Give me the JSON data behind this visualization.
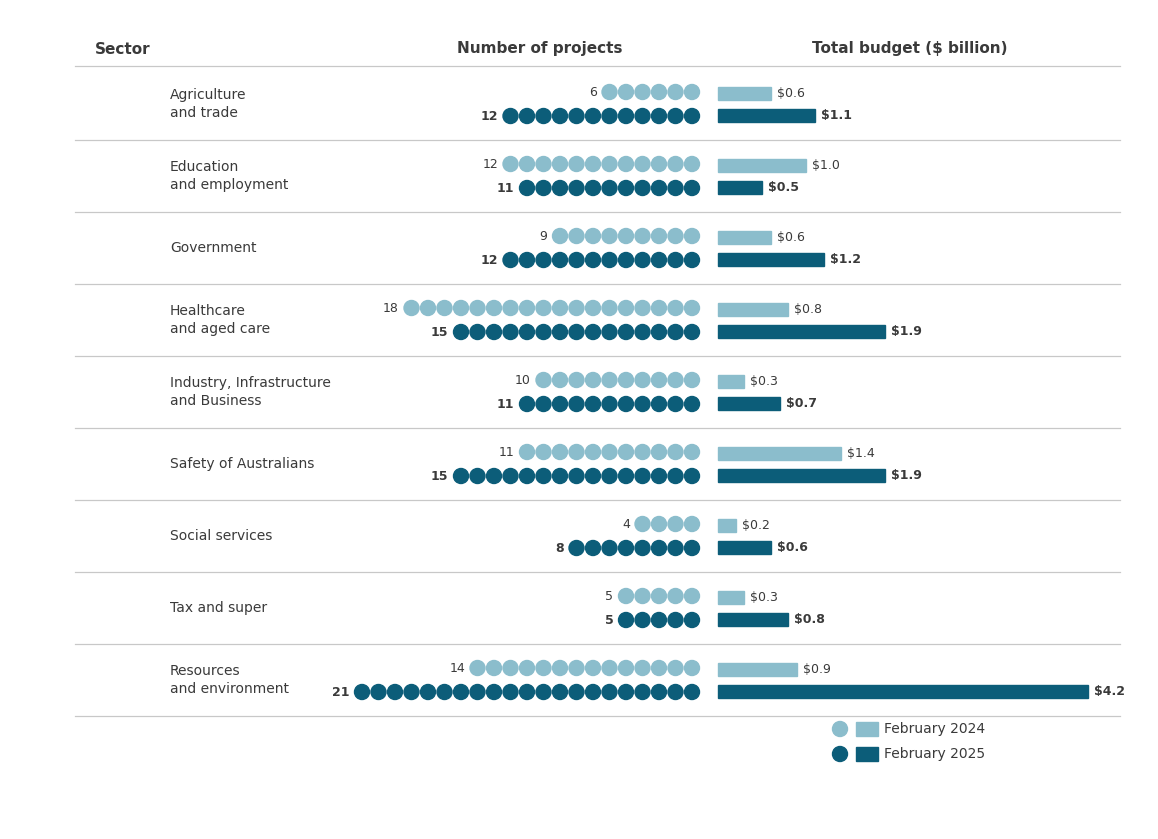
{
  "sectors": [
    {
      "name": "Agriculture\nand trade",
      "projects_2024": 6,
      "projects_2025": 12,
      "budget_2024": 0.6,
      "budget_2025": 1.1
    },
    {
      "name": "Education\nand employment",
      "projects_2024": 12,
      "projects_2025": 11,
      "budget_2024": 1.0,
      "budget_2025": 0.5
    },
    {
      "name": "Government",
      "projects_2024": 9,
      "projects_2025": 12,
      "budget_2024": 0.6,
      "budget_2025": 1.2
    },
    {
      "name": "Healthcare\nand aged care",
      "projects_2024": 18,
      "projects_2025": 15,
      "budget_2024": 0.8,
      "budget_2025": 1.9
    },
    {
      "name": "Industry, Infrastructure\nand Business",
      "projects_2024": 10,
      "projects_2025": 11,
      "budget_2024": 0.3,
      "budget_2025": 0.7
    },
    {
      "name": "Safety of Australians",
      "projects_2024": 11,
      "projects_2025": 15,
      "budget_2024": 1.4,
      "budget_2025": 1.9
    },
    {
      "name": "Social services",
      "projects_2024": 4,
      "projects_2025": 8,
      "budget_2024": 0.2,
      "budget_2025": 0.6
    },
    {
      "name": "Tax and super",
      "projects_2024": 5,
      "projects_2025": 5,
      "budget_2024": 0.3,
      "budget_2025": 0.8
    },
    {
      "name": "Resources\nand environment",
      "projects_2024": 14,
      "projects_2025": 21,
      "budget_2024": 0.9,
      "budget_2025": 4.2
    }
  ],
  "color_2024": "#8bbdcc",
  "color_2025": "#0c5d79",
  "bar_2024_color": "#8bbdcc",
  "bar_2025_color": "#0c5d79",
  "background_color": "#ffffff",
  "header_sector": "Sector",
  "header_projects": "Number of projects",
  "header_budget": "Total budget ($ billion)",
  "legend_2024": "February 2024",
  "legend_2025": "February 2025",
  "budget_scale_max": 4.2,
  "divider_color": "#c8c8c8",
  "text_color": "#3a3a3a",
  "header_fontsize": 11,
  "label_fontsize": 10,
  "count_fontsize": 9,
  "budget_label_fontsize": 9
}
